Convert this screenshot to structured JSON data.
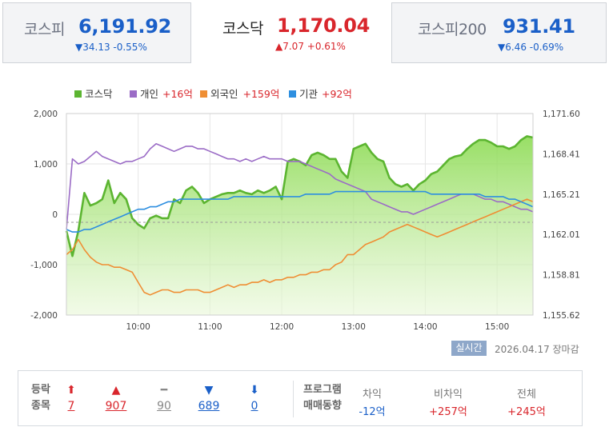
{
  "tabs": [
    {
      "name": "코스피",
      "value": "6,191.92",
      "change": "▼34.13 -0.55%",
      "direction": "down"
    },
    {
      "name": "코스닥",
      "value": "1,170.04",
      "change": "▲7.07 +0.61%",
      "direction": "up"
    },
    {
      "name": "코스피200",
      "value": "931.41",
      "change": "▼6.46 -0.69%",
      "direction": "down"
    }
  ],
  "legend": [
    {
      "label": "코스닥",
      "value": "",
      "color": "#5cb531"
    },
    {
      "label": "개인",
      "value": "+16억",
      "color": "#9b6cc6"
    },
    {
      "label": "외국인",
      "value": "+159억",
      "color": "#ef8e34"
    },
    {
      "label": "기관",
      "value": "+92억",
      "color": "#2e8fe0"
    }
  ],
  "realtime_label": "실시간",
  "timestamp": "2026.04.17  장마감",
  "colors": {
    "up": "#d9262c",
    "down": "#1a5fc8",
    "kosdaq": "#5cb531",
    "individual": "#9b6cc6",
    "foreign": "#ef8e34",
    "institution": "#2e8fe0"
  },
  "chart_data": {
    "type": "line",
    "x_ticks": [
      "10:00",
      "11:00",
      "12:00",
      "13:00",
      "14:00",
      "15:00"
    ],
    "x": [
      "09:00",
      "09:05",
      "09:10",
      "09:15",
      "09:20",
      "09:25",
      "09:30",
      "09:35",
      "09:40",
      "09:45",
      "09:50",
      "09:55",
      "10:00",
      "10:05",
      "10:10",
      "10:15",
      "10:20",
      "10:25",
      "10:30",
      "10:35",
      "10:40",
      "10:45",
      "10:50",
      "10:55",
      "11:00",
      "11:05",
      "11:10",
      "11:15",
      "11:20",
      "11:25",
      "11:30",
      "11:35",
      "11:40",
      "11:45",
      "11:50",
      "11:55",
      "12:00",
      "12:05",
      "12:10",
      "12:15",
      "12:20",
      "12:25",
      "12:30",
      "12:35",
      "12:40",
      "12:45",
      "12:50",
      "12:55",
      "13:00",
      "13:05",
      "13:10",
      "13:15",
      "13:20",
      "13:25",
      "13:30",
      "13:35",
      "13:40",
      "13:45",
      "13:50",
      "13:55",
      "14:00",
      "14:05",
      "14:10",
      "14:15",
      "14:20",
      "14:25",
      "14:30",
      "14:35",
      "14:40",
      "14:45",
      "14:50",
      "14:55",
      "15:00",
      "15:05",
      "15:10",
      "15:15",
      "15:20",
      "15:25",
      "15:30"
    ],
    "left_axis": {
      "label": "",
      "ylim": [
        -2000,
        2000
      ],
      "ticks": [
        "2,000",
        "1,000",
        "0",
        "-1,000",
        "-2,000"
      ]
    },
    "right_axis": {
      "label": "",
      "ylim": [
        1155.62,
        1171.6
      ],
      "ticks": [
        "1,171.60",
        "1,168.41",
        "1,165.21",
        "1,162.01",
        "1,158.81",
        "1,155.62"
      ]
    },
    "grid": true,
    "legend_position": "top-left",
    "series": [
      {
        "name": "코스닥",
        "axis": "right",
        "kind": "area",
        "values": [
          1162.3,
          1160.3,
          1162.3,
          1165.3,
          1164.3,
          1164.5,
          1164.8,
          1166.3,
          1164.5,
          1165.3,
          1164.8,
          1163.3,
          1162.8,
          1162.5,
          1163.3,
          1163.5,
          1163.3,
          1163.3,
          1164.8,
          1164.5,
          1165.5,
          1165.8,
          1165.3,
          1164.5,
          1164.8,
          1165.0,
          1165.2,
          1165.3,
          1165.3,
          1165.5,
          1165.3,
          1165.2,
          1165.5,
          1165.3,
          1165.5,
          1165.8,
          1164.8,
          1167.8,
          1168.0,
          1167.8,
          1167.5,
          1168.3,
          1168.5,
          1168.3,
          1168.0,
          1168.0,
          1167.0,
          1166.5,
          1168.8,
          1169.0,
          1169.2,
          1168.5,
          1168.0,
          1167.8,
          1166.5,
          1166.0,
          1165.8,
          1166.0,
          1165.5,
          1166.0,
          1166.3,
          1166.8,
          1167.0,
          1167.5,
          1168.0,
          1168.2,
          1168.3,
          1168.8,
          1169.2,
          1169.5,
          1169.5,
          1169.3,
          1169.0,
          1169.0,
          1168.8,
          1169.0,
          1169.5,
          1169.8,
          1169.7
        ]
      },
      {
        "name": "개인",
        "axis": "left",
        "kind": "line",
        "values": [
          -300,
          1100,
          1000,
          1050,
          1150,
          1250,
          1150,
          1100,
          1050,
          1000,
          1050,
          1050,
          1100,
          1150,
          1300,
          1400,
          1350,
          1300,
          1250,
          1300,
          1350,
          1350,
          1300,
          1300,
          1250,
          1200,
          1150,
          1100,
          1100,
          1050,
          1100,
          1050,
          1100,
          1150,
          1100,
          1100,
          1100,
          1050,
          1050,
          1050,
          1000,
          950,
          900,
          850,
          800,
          700,
          650,
          600,
          550,
          500,
          450,
          300,
          250,
          200,
          150,
          100,
          50,
          50,
          0,
          50,
          100,
          150,
          200,
          250,
          300,
          350,
          400,
          400,
          400,
          350,
          300,
          300,
          250,
          250,
          200,
          150,
          100,
          100,
          50
        ]
      },
      {
        "name": "외국인",
        "axis": "left",
        "kind": "line",
        "values": [
          -800,
          -700,
          -500,
          -700,
          -850,
          -950,
          -1000,
          -1000,
          -1050,
          -1050,
          -1100,
          -1150,
          -1350,
          -1550,
          -1600,
          -1550,
          -1500,
          -1500,
          -1550,
          -1550,
          -1500,
          -1500,
          -1500,
          -1550,
          -1550,
          -1500,
          -1450,
          -1400,
          -1450,
          -1400,
          -1400,
          -1350,
          -1350,
          -1300,
          -1350,
          -1300,
          -1300,
          -1250,
          -1250,
          -1200,
          -1200,
          -1150,
          -1150,
          -1100,
          -1100,
          -1000,
          -950,
          -800,
          -800,
          -700,
          -600,
          -550,
          -500,
          -450,
          -350,
          -300,
          -250,
          -200,
          -250,
          -300,
          -350,
          -400,
          -450,
          -400,
          -350,
          -300,
          -250,
          -200,
          -150,
          -100,
          -50,
          0,
          50,
          100,
          150,
          200,
          250,
          300,
          250
        ]
      },
      {
        "name": "기관",
        "axis": "left",
        "kind": "line",
        "values": [
          -300,
          -350,
          -350,
          -300,
          -300,
          -250,
          -200,
          -150,
          -100,
          -50,
          0,
          50,
          100,
          100,
          150,
          150,
          200,
          250,
          250,
          300,
          300,
          300,
          300,
          300,
          300,
          300,
          300,
          300,
          350,
          350,
          350,
          350,
          350,
          350,
          350,
          350,
          350,
          350,
          350,
          350,
          400,
          400,
          400,
          400,
          400,
          450,
          450,
          450,
          450,
          450,
          450,
          450,
          450,
          450,
          450,
          450,
          450,
          450,
          450,
          450,
          450,
          400,
          400,
          400,
          400,
          400,
          400,
          400,
          400,
          400,
          350,
          350,
          350,
          350,
          300,
          300,
          250,
          200,
          150
        ]
      }
    ]
  },
  "stats": {
    "head1": "등락",
    "head2": "종목",
    "items": [
      {
        "icon": "⬆",
        "count": "7",
        "color": "#d9262c",
        "icon_name": "upper-limit-icon"
      },
      {
        "icon": "▲",
        "count": "907",
        "color": "#d9262c",
        "icon_name": "advance-icon"
      },
      {
        "icon": "━",
        "count": "90",
        "color": "#888888",
        "icon_name": "unchanged-icon"
      },
      {
        "icon": "▼",
        "count": "689",
        "color": "#1a5fc8",
        "icon_name": "decline-icon"
      },
      {
        "icon": "⬇",
        "count": "0",
        "color": "#1a5fc8",
        "icon_name": "lower-limit-icon"
      }
    ],
    "program_head1": "프로그램",
    "program_head2": "매매동향",
    "program": [
      {
        "label": "차익",
        "value": "-12억",
        "color": "#1a5fc8"
      },
      {
        "label": "비차익",
        "value": "+257억",
        "color": "#d9262c"
      },
      {
        "label": "전체",
        "value": "+245억",
        "color": "#d9262c"
      }
    ]
  }
}
